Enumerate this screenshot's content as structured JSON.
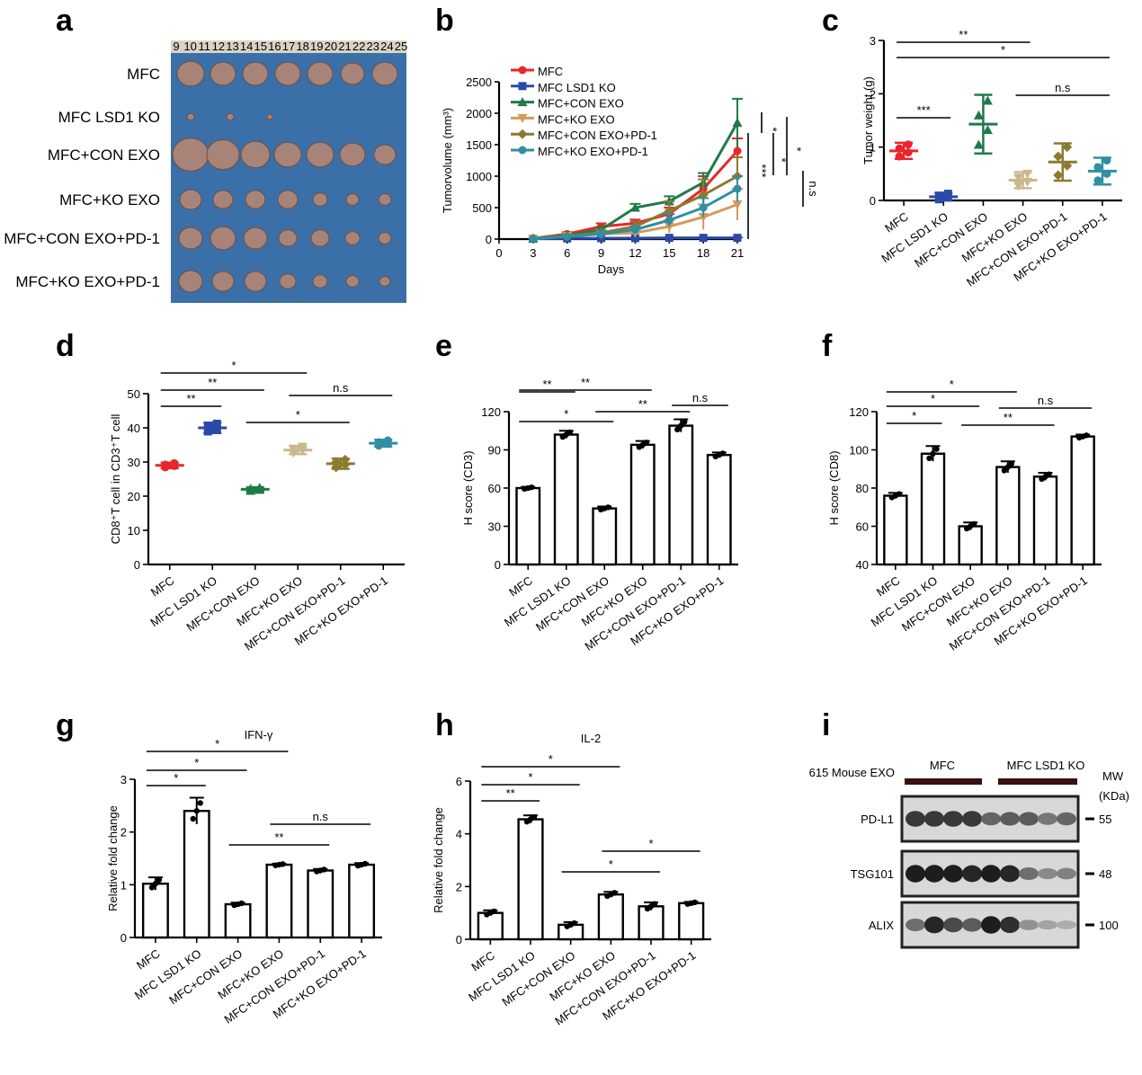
{
  "panels": {
    "a": {
      "letter": "a",
      "row_labels": [
        "MFC",
        "MFC LSD1 KO",
        "MFC+CON EXO",
        "MFC+KO EXO",
        "MFC+CON EXO+PD-1",
        "MFC+KO EXO+PD-1"
      ],
      "ruler_labels": [
        "9",
        "10",
        "11",
        "12",
        "13",
        "14",
        "15",
        "16",
        "17",
        "18",
        "19",
        "20",
        "21",
        "22",
        "23",
        "24",
        "25"
      ],
      "photo_bg": "#3b6fa8",
      "tumor_color": "#a88478",
      "tumors_per_row": [
        7,
        3,
        7,
        7,
        7,
        7
      ]
    },
    "b": {
      "letter": "b"
    },
    "c": {
      "letter": "c"
    },
    "d": {
      "letter": "d"
    },
    "e": {
      "letter": "e"
    },
    "f": {
      "letter": "f"
    },
    "g": {
      "letter": "g"
    },
    "h": {
      "letter": "h"
    },
    "i": {
      "letter": "i",
      "source_label": "615 Mouse EXO",
      "group_labels": [
        "MFC",
        "MFC LSD1 KO"
      ],
      "mw_header": "MW",
      "mw_unit": "(KDa)",
      "bands": [
        {
          "protein": "PD-L1",
          "mw": "55",
          "intensity": [
            0.8,
            0.8,
            0.8,
            0.8,
            0.55,
            0.6,
            0.6,
            0.45,
            0.55
          ]
        },
        {
          "protein": "TSG101",
          "mw": "48",
          "intensity": [
            0.95,
            0.95,
            0.95,
            0.9,
            0.95,
            0.9,
            0.5,
            0.35,
            0.4
          ]
        },
        {
          "protein": "ALIX",
          "mw": "100",
          "intensity": [
            0.5,
            0.9,
            0.7,
            0.6,
            0.95,
            0.85,
            0.3,
            0.2,
            0.15
          ]
        }
      ]
    }
  },
  "chart_data": [
    {
      "panel": "b",
      "type": "line",
      "ylabel": "Tumorvolume (mm³)",
      "xlabel": "Days",
      "x": [
        3,
        6,
        9,
        12,
        15,
        18,
        21
      ],
      "xlim": [
        0,
        21
      ],
      "ylim": [
        0,
        2500
      ],
      "xticks": [
        0,
        3,
        6,
        9,
        12,
        15,
        18,
        21
      ],
      "yticks": [
        0,
        500,
        1000,
        1500,
        2000,
        2500
      ],
      "series": [
        {
          "name": "MFC",
          "color": "#e8262b",
          "marker": "circle",
          "values": [
            10,
            80,
            200,
            250,
            400,
            800,
            1400
          ],
          "err": [
            0,
            30,
            50,
            60,
            100,
            200,
            200
          ]
        },
        {
          "name": "MFC LSD1 KO",
          "color": "#2a4aa8",
          "marker": "square",
          "values": [
            5,
            10,
            15,
            15,
            20,
            20,
            20
          ],
          "err": [
            0,
            5,
            5,
            5,
            5,
            5,
            5
          ]
        },
        {
          "name": "MFC+CON EXO",
          "color": "#1f7a4a",
          "marker": "triangle",
          "values": [
            10,
            60,
            150,
            500,
            600,
            900,
            1850
          ],
          "err": [
            0,
            20,
            40,
            60,
            80,
            150,
            380
          ]
        },
        {
          "name": "MFC+KO EXO",
          "color": "#d59a5b",
          "marker": "triangle-down",
          "values": [
            5,
            50,
            80,
            100,
            200,
            350,
            550
          ],
          "err": [
            0,
            20,
            30,
            50,
            100,
            200,
            250
          ]
        },
        {
          "name": "MFC+CON EXO+PD-1",
          "color": "#8c7a2f",
          "marker": "diamond",
          "values": [
            10,
            50,
            100,
            200,
            450,
            700,
            1000
          ],
          "err": [
            0,
            20,
            40,
            80,
            150,
            250,
            300
          ]
        },
        {
          "name": "MFC+KO EXO+PD-1",
          "color": "#2f8fa3",
          "marker": "circle",
          "values": [
            5,
            40,
            80,
            150,
            300,
            500,
            800
          ],
          "err": [
            0,
            15,
            30,
            50,
            100,
            150,
            200
          ]
        }
      ],
      "significance": [
        "*",
        "*",
        "*",
        "***",
        "n.s"
      ]
    },
    {
      "panel": "c",
      "type": "scatter",
      "ylabel": "Tumor weight (g)",
      "categories": [
        "MFC",
        "MFC LSD1 KO",
        "MFC+CON EXO",
        "MFC+KO EXO",
        "MFC+CON EXO+PD-1",
        "MFC+KO EXO+PD-1"
      ],
      "colors": [
        "#e8262b",
        "#2a4aa8",
        "#1f7a4a",
        "#c8b98a",
        "#8c7a2f",
        "#2f8fa3"
      ],
      "means": [
        0.93,
        0.07,
        1.43,
        0.38,
        0.72,
        0.55
      ],
      "sd": [
        0.15,
        0.07,
        0.55,
        0.15,
        0.35,
        0.25
      ],
      "ylim": [
        0,
        3
      ],
      "yticks": [
        0,
        1,
        2,
        3
      ],
      "brackets": [
        {
          "from": 0,
          "to": 3,
          "label": "**"
        },
        {
          "from": 0,
          "to": 5,
          "label": "*"
        },
        {
          "from": 0,
          "to": 1,
          "label": "***"
        },
        {
          "from": 3,
          "to": 5,
          "label": "n.s"
        }
      ]
    },
    {
      "panel": "d",
      "type": "scatter",
      "ylabel": "CD8⁺T cell in CD3⁺T cell",
      "categories": [
        "MFC",
        "MFC LSD1 KO",
        "MFC+CON EXO",
        "MFC+KO EXO",
        "MFC+CON EXO+PD-1",
        "MFC+KO EXO+PD-1"
      ],
      "colors": [
        "#e8262b",
        "#2a4aa8",
        "#1f7a4a",
        "#c8b98a",
        "#8c7a2f",
        "#2f8fa3"
      ],
      "means": [
        29,
        40,
        22,
        33.5,
        29.5,
        35.5
      ],
      "sd": [
        0.8,
        1.5,
        0.6,
        1.2,
        1.5,
        1.0
      ],
      "ylim": [
        0,
        50
      ],
      "yticks": [
        0,
        10,
        20,
        30,
        40,
        50
      ],
      "brackets": [
        {
          "from": 0,
          "to": 3,
          "label": "*"
        },
        {
          "from": 0,
          "to": 2,
          "label": "**"
        },
        {
          "from": 0,
          "to": 1,
          "label": "**"
        },
        {
          "from": 3,
          "to": 5,
          "label": "n.s"
        },
        {
          "from": 2,
          "to": 4,
          "label": "*"
        }
      ]
    },
    {
      "panel": "e",
      "type": "bar",
      "ylabel": "H score (CD3)",
      "categories": [
        "MFC",
        "MFC LSD1 KO",
        "MFC+CON EXO",
        "MFC+KO EXO",
        "MFC+CON EXO+PD-1",
        "MFC+KO EXO+PD-1"
      ],
      "values": [
        60,
        102,
        44,
        94,
        109,
        86
      ],
      "sd": [
        1,
        3,
        1.5,
        3,
        5,
        2
      ],
      "ylim": [
        0,
        120
      ],
      "yticks": [
        0,
        30,
        60,
        90,
        120
      ],
      "brackets": [
        {
          "from": 0,
          "to": 3,
          "label": "**"
        },
        {
          "from": 4,
          "to": 5,
          "label": "n.s"
        },
        {
          "from": 0,
          "to": 2,
          "label": "*"
        },
        {
          "from": 0,
          "to": 1,
          "label": "**"
        },
        {
          "from": 2,
          "to": 4,
          "label": "**"
        }
      ]
    },
    {
      "panel": "f",
      "type": "bar",
      "ylabel": "H score (CD8)",
      "categories": [
        "MFC",
        "MFC LSD1 KO",
        "MFC+CON EXO",
        "MFC+KO EXO",
        "MFC+CON EXO+PD-1",
        "MFC+KO EXO+PD-1"
      ],
      "values": [
        76,
        98,
        60,
        91,
        86,
        107
      ],
      "sd": [
        1.5,
        4,
        2,
        3,
        2,
        1
      ],
      "ylim": [
        40,
        120
      ],
      "yticks": [
        40,
        60,
        80,
        100,
        120
      ],
      "brackets": [
        {
          "from": 0,
          "to": 3,
          "label": "*"
        },
        {
          "from": 0,
          "to": 2,
          "label": "*"
        },
        {
          "from": 3,
          "to": 5,
          "label": "n.s"
        },
        {
          "from": 0,
          "to": 1,
          "label": "*"
        },
        {
          "from": 2,
          "to": 4,
          "label": "**"
        }
      ]
    },
    {
      "panel": "g",
      "type": "bar",
      "title": "IFN-γ",
      "ylabel": "Relative fold change",
      "categories": [
        "MFC",
        "MFC LSD1 KO",
        "MFC+CON EXO",
        "MFC+KO EXO",
        "MFC+CON EXO+PD-1",
        "MFC+KO EXO+PD-1"
      ],
      "values": [
        1.02,
        2.4,
        0.63,
        1.38,
        1.27,
        1.38
      ],
      "sd": [
        0.12,
        0.25,
        0.03,
        0.02,
        0.03,
        0.03
      ],
      "ylim": [
        0,
        3
      ],
      "yticks": [
        0,
        1,
        2,
        3
      ],
      "brackets": [
        {
          "from": 0,
          "to": 3,
          "label": "*"
        },
        {
          "from": 0,
          "to": 2,
          "label": "*"
        },
        {
          "from": 0,
          "to": 1,
          "label": "*"
        },
        {
          "from": 3,
          "to": 5,
          "label": "n.s"
        },
        {
          "from": 2,
          "to": 4,
          "label": "**"
        }
      ]
    },
    {
      "panel": "h",
      "type": "bar",
      "title": "IL-2",
      "ylabel": "Relative fold change",
      "categories": [
        "MFC",
        "MFC LSD1 KO",
        "MFC+CON EXO",
        "MFC+KO EXO",
        "MFC+CON EXO+PD-1",
        "MFC+KO EXO+PD-1"
      ],
      "values": [
        1.0,
        4.55,
        0.55,
        1.7,
        1.25,
        1.37
      ],
      "sd": [
        0.1,
        0.15,
        0.1,
        0.1,
        0.15,
        0.05
      ],
      "ylim": [
        0,
        6
      ],
      "yticks": [
        0,
        2,
        4,
        6
      ],
      "brackets": [
        {
          "from": 0,
          "to": 3,
          "label": "*"
        },
        {
          "from": 0,
          "to": 2,
          "label": "*"
        },
        {
          "from": 0,
          "to": 1,
          "label": "**"
        },
        {
          "from": 3,
          "to": 5,
          "label": "*"
        },
        {
          "from": 2,
          "to": 4,
          "label": "*"
        }
      ]
    }
  ]
}
